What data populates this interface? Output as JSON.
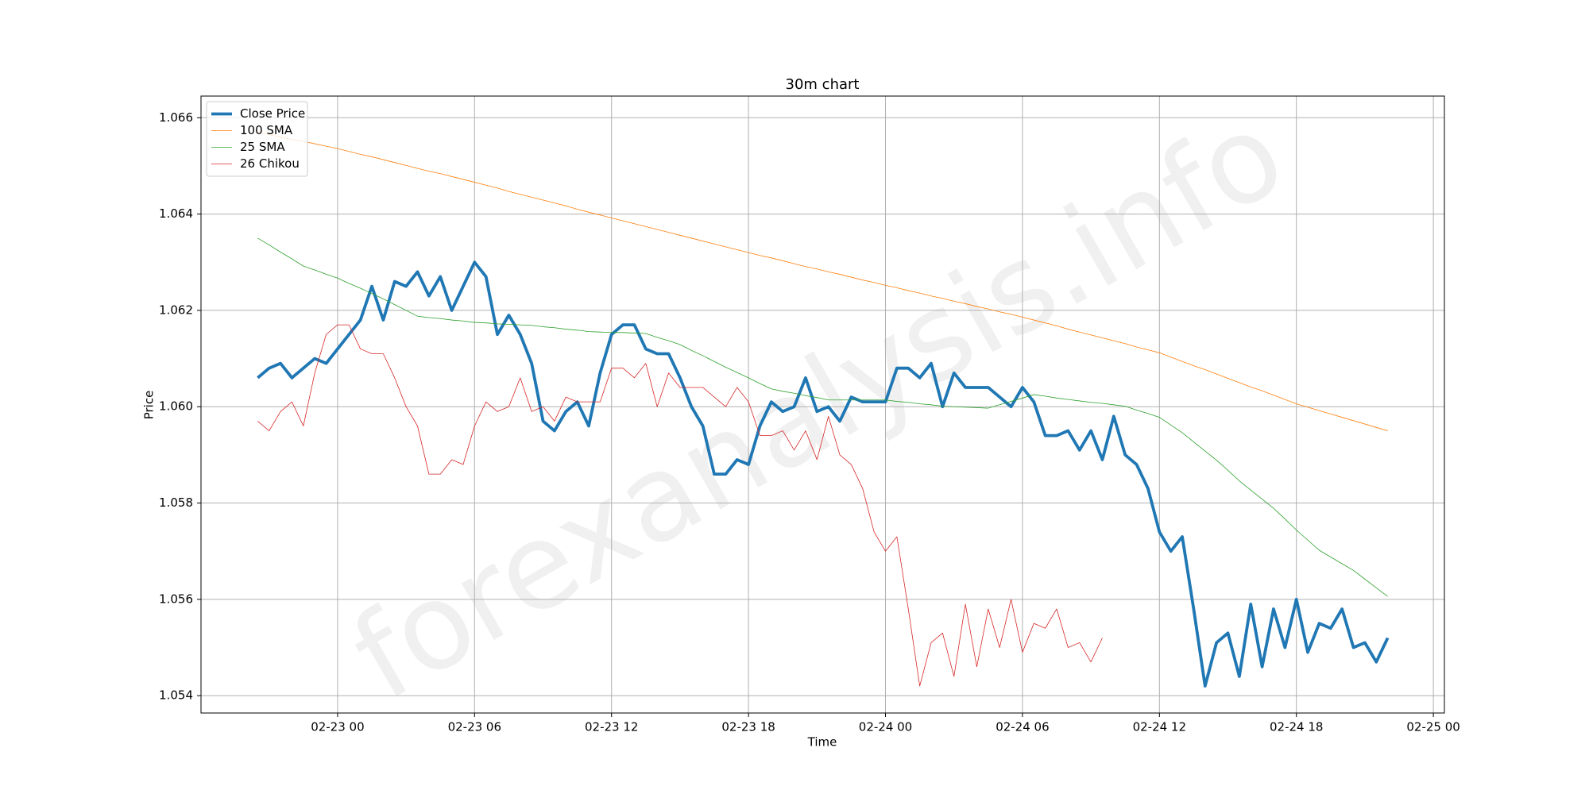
{
  "chart_data": {
    "type": "line",
    "title": "30m chart",
    "x_label": "Time",
    "y_label": "Price",
    "watermark": "forexanalysis.info",
    "grid": true,
    "legend": "upper left",
    "xlim": [
      "02-22 18:01",
      "02-25 00:29"
    ],
    "xticks": [
      "02-23 00",
      "02-23 06",
      "02-23 12",
      "02-23 18",
      "02-24 00",
      "02-24 06",
      "02-24 12",
      "02-24 18",
      "02-25 00"
    ],
    "ylim": [
      1.05364,
      1.06645
    ],
    "yticks": [
      1.054,
      1.056,
      1.058,
      {
        "value": 1.06,
        "label": "1.060"
      },
      1.062,
      1.064,
      1.066
    ],
    "x": [
      "02-22 20:30",
      "02-22 21:00",
      "02-22 21:30",
      "02-22 22:00",
      "02-22 22:30",
      "02-22 23:00",
      "02-22 23:30",
      "02-23 00:00",
      "02-23 00:30",
      "02-23 01:00",
      "02-23 01:30",
      "02-23 02:00",
      "02-23 02:30",
      "02-23 03:00",
      "02-23 03:30",
      "02-23 04:00",
      "02-23 04:30",
      "02-23 05:00",
      "02-23 05:30",
      "02-23 06:00",
      "02-23 06:30",
      "02-23 07:00",
      "02-23 07:30",
      "02-23 08:00",
      "02-23 08:30",
      "02-23 09:00",
      "02-23 09:30",
      "02-23 10:00",
      "02-23 10:30",
      "02-23 11:00",
      "02-23 11:30",
      "02-23 12:00",
      "02-23 12:30",
      "02-23 13:00",
      "02-23 13:30",
      "02-23 14:00",
      "02-23 14:30",
      "02-23 15:00",
      "02-23 15:30",
      "02-23 16:00",
      "02-23 16:30",
      "02-23 17:00",
      "02-23 17:30",
      "02-23 18:00",
      "02-23 18:30",
      "02-23 19:00",
      "02-23 19:30",
      "02-23 20:00",
      "02-23 20:30",
      "02-23 21:00",
      "02-23 21:30",
      "02-23 22:00",
      "02-23 22:30",
      "02-23 23:00",
      "02-23 23:30",
      "02-24 00:00",
      "02-24 00:30",
      "02-24 01:00",
      "02-24 01:30",
      "02-24 02:00",
      "02-24 02:30",
      "02-24 03:00",
      "02-24 03:30",
      "02-24 04:00",
      "02-24 04:30",
      "02-24 05:00",
      "02-24 05:30",
      "02-24 06:00",
      "02-24 06:30",
      "02-24 07:00",
      "02-24 07:30",
      "02-24 08:00",
      "02-24 08:30",
      "02-24 09:00",
      "02-24 09:30",
      "02-24 10:00",
      "02-24 10:30",
      "02-24 11:00",
      "02-24 11:30",
      "02-24 12:00",
      "02-24 12:30",
      "02-24 13:00",
      "02-24 13:30",
      "02-24 14:00",
      "02-24 14:30",
      "02-24 15:00",
      "02-24 15:30",
      "02-24 16:00",
      "02-24 16:30",
      "02-24 17:00",
      "02-24 17:30",
      "02-24 18:00",
      "02-24 18:30",
      "02-24 19:00",
      "02-24 19:30",
      "02-24 20:00",
      "02-24 20:30",
      "02-24 21:00",
      "02-24 21:30",
      "02-24 22:00"
    ],
    "series": [
      {
        "name": "Close Price",
        "color": "#1f77b4",
        "linewidth": 3.8,
        "values": [
          1.0606,
          1.0608,
          1.0609,
          1.0606,
          1.0608,
          1.061,
          1.0609,
          1.0612,
          1.0615,
          1.0618,
          1.0625,
          1.0618,
          1.0626,
          1.0625,
          1.0628,
          1.0623,
          1.0627,
          1.062,
          1.0625,
          1.063,
          1.0627,
          1.0615,
          1.0619,
          1.0615,
          1.0609,
          1.0597,
          1.0595,
          1.0599,
          1.0601,
          1.0596,
          1.0607,
          1.0615,
          1.0617,
          1.0617,
          1.0612,
          1.0611,
          1.0611,
          1.0606,
          1.06,
          1.0596,
          1.0586,
          1.0586,
          1.0589,
          1.0588,
          1.0596,
          1.0601,
          1.0599,
          1.06,
          1.0606,
          1.0599,
          1.06,
          1.0597,
          1.0602,
          1.0601,
          1.0601,
          1.0601,
          1.0608,
          1.0608,
          1.0606,
          1.0609,
          1.06,
          1.0607,
          1.0604,
          1.0604,
          1.0604,
          1.0602,
          1.06,
          1.0604,
          1.0601,
          1.0594,
          1.0594,
          1.0595,
          1.0591,
          1.0595,
          1.0589,
          1.0598,
          1.059,
          1.0588,
          1.0583,
          1.0574,
          1.057,
          1.0573,
          1.0558,
          1.0542,
          1.0551,
          1.0553,
          1.0544,
          1.0559,
          1.0546,
          1.0558,
          1.055,
          1.056,
          1.0549,
          1.0555,
          1.0554,
          1.0558,
          1.055,
          1.0551,
          1.0547,
          1.0552
        ]
      },
      {
        "name": "100 SMA",
        "color": "#ff7f0e",
        "linewidth": 0.8,
        "values": [
          1.0657,
          1.06565,
          1.0656,
          1.06555,
          1.06551,
          1.06546,
          1.06541,
          1.06536,
          1.0653,
          1.06524,
          1.06519,
          1.06513,
          1.06507,
          1.06501,
          1.06495,
          1.06489,
          1.06484,
          1.06478,
          1.06472,
          1.06466,
          1.0646,
          1.06454,
          1.06447,
          1.06441,
          1.06435,
          1.06429,
          1.06423,
          1.06417,
          1.0641,
          1.06404,
          1.06398,
          1.06392,
          1.06386,
          1.0638,
          1.06374,
          1.06368,
          1.06362,
          1.06356,
          1.0635,
          1.06344,
          1.06338,
          1.06332,
          1.06326,
          1.0632,
          1.06314,
          1.06309,
          1.06303,
          1.06297,
          1.06291,
          1.06286,
          1.0628,
          1.06275,
          1.06269,
          1.06263,
          1.06258,
          1.06252,
          1.06247,
          1.06241,
          1.06236,
          1.0623,
          1.06225,
          1.06219,
          1.06214,
          1.06208,
          1.06203,
          1.06197,
          1.06192,
          1.06186,
          1.0618,
          1.06174,
          1.06168,
          1.06161,
          1.06155,
          1.06149,
          1.06143,
          1.06137,
          1.06131,
          1.06124,
          1.06118,
          1.06112,
          1.06103,
          1.06094,
          1.06085,
          1.06077,
          1.06068,
          1.06059,
          1.0605,
          1.06041,
          1.06033,
          1.06024,
          1.06015,
          1.06006,
          1.05999,
          1.05992,
          1.05985,
          1.05978,
          1.05971,
          1.05964,
          1.05957,
          1.0595
        ]
      },
      {
        "name": "25 SMA",
        "color": "#2ca02c",
        "linewidth": 0.8,
        "values": [
          1.0635,
          1.06336,
          1.06321,
          1.06307,
          1.06292,
          1.06284,
          1.06275,
          1.06267,
          1.06256,
          1.06246,
          1.06235,
          1.06224,
          1.06212,
          1.062,
          1.06188,
          1.06185,
          1.06183,
          1.0618,
          1.06178,
          1.06175,
          1.06174,
          1.06172,
          1.06171,
          1.0617,
          1.06169,
          1.06166,
          1.06164,
          1.06161,
          1.06159,
          1.06156,
          1.06155,
          1.06154,
          1.06154,
          1.06153,
          1.06152,
          1.06144,
          1.06137,
          1.06129,
          1.06117,
          1.06106,
          1.06094,
          1.06082,
          1.06071,
          1.0606,
          1.06048,
          1.06037,
          1.06032,
          1.06028,
          1.06023,
          1.06019,
          1.06014,
          1.06014,
          1.06014,
          1.06014,
          1.06014,
          1.06014,
          1.06011,
          1.06009,
          1.06006,
          1.06004,
          1.06001,
          1.06,
          1.05999,
          1.05998,
          1.05997,
          1.06004,
          1.06011,
          1.06018,
          1.06025,
          1.06022,
          1.06018,
          1.06015,
          1.06012,
          1.06009,
          1.06007,
          1.06004,
          1.06001,
          1.05993,
          1.05986,
          1.05978,
          1.05962,
          1.05946,
          1.05927,
          1.05908,
          1.05889,
          1.05868,
          1.05846,
          1.05827,
          1.05808,
          1.05789,
          1.05767,
          1.05744,
          1.05723,
          1.05702,
          1.05688,
          1.05674,
          1.0566,
          1.05642,
          1.05624,
          1.05606
        ]
      },
      {
        "name": "26 Chikou",
        "color": "#d62728",
        "linewidth": 0.8,
        "values": [
          1.0597,
          1.0595,
          1.0599,
          1.0601,
          1.0596,
          1.0607,
          1.0615,
          1.0617,
          1.0617,
          1.0612,
          1.0611,
          1.0611,
          1.0606,
          1.06,
          1.0596,
          1.0586,
          1.0586,
          1.0589,
          1.0588,
          1.0596,
          1.0601,
          1.0599,
          1.06,
          1.0606,
          1.0599,
          1.06,
          1.0597,
          1.0602,
          1.0601,
          1.0601,
          1.0601,
          1.0608,
          1.0608,
          1.0606,
          1.0609,
          1.06,
          1.0607,
          1.0604,
          1.0604,
          1.0604,
          1.0602,
          1.06,
          1.0604,
          1.0601,
          1.0594,
          1.0594,
          1.0595,
          1.0591,
          1.0595,
          1.0589,
          1.0598,
          1.059,
          1.0588,
          1.0583,
          1.0574,
          1.057,
          1.0573,
          1.0558,
          1.0542,
          1.0551,
          1.0553,
          1.0544,
          1.0559,
          1.0546,
          1.0558,
          1.055,
          1.056,
          1.0549,
          1.0555,
          1.0554,
          1.0558,
          1.055,
          1.0551,
          1.0547,
          1.0552,
          null,
          null,
          null,
          null,
          null,
          null,
          null,
          null,
          null,
          null,
          null,
          null,
          null,
          null,
          null,
          null,
          null,
          null,
          null,
          null,
          null,
          null,
          null,
          null,
          null
        ]
      }
    ]
  }
}
